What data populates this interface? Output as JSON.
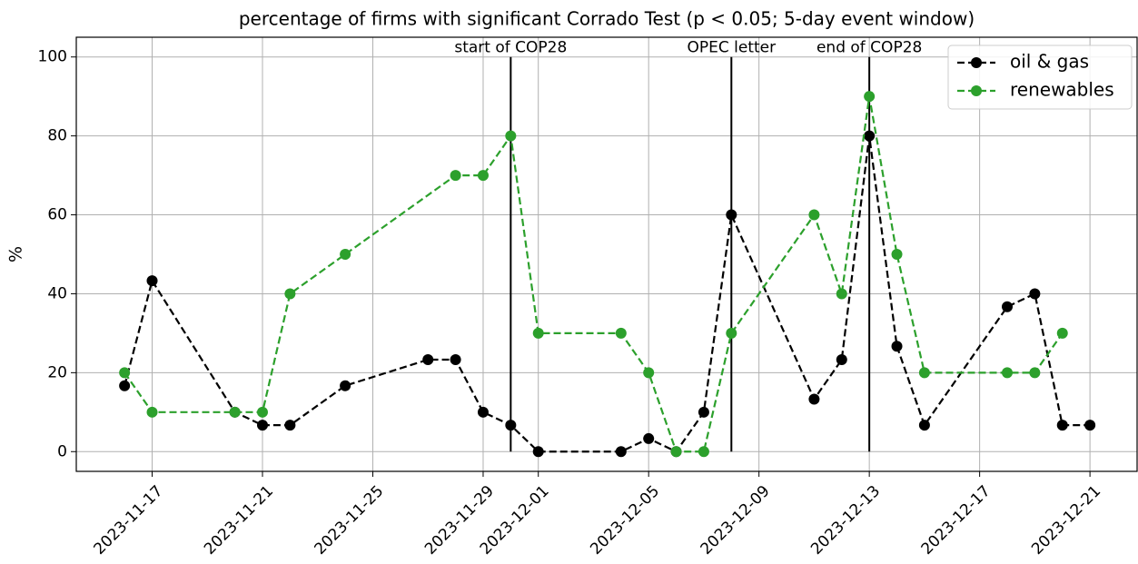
{
  "chart_data": {
    "type": "line",
    "title": "percentage of firms with significant Corrado Test (p < 0.05; 5-day event window)",
    "y_label": "%",
    "xlim": [
      "2023-11-14T06:00",
      "2023-12-22T17:00"
    ],
    "xticks": [
      "2023-11-17",
      "2023-11-21",
      "2023-11-25",
      "2023-11-29",
      "2023-12-01",
      "2023-12-05",
      "2023-12-09",
      "2023-12-13",
      "2023-12-17",
      "2023-12-21"
    ],
    "ylim": [
      -5,
      105
    ],
    "yticks": [
      0,
      20,
      40,
      60,
      80,
      100
    ],
    "grid": true,
    "legend": "upper right",
    "series": [
      {
        "name": "oil & gas",
        "color": "#000000",
        "x": [
          "2023-11-16",
          "2023-11-17",
          "2023-11-20",
          "2023-11-21",
          "2023-11-22",
          "2023-11-24",
          "2023-11-27",
          "2023-11-28",
          "2023-11-29",
          "2023-11-30",
          "2023-12-01",
          "2023-12-04",
          "2023-12-05",
          "2023-12-06",
          "2023-12-07",
          "2023-12-08",
          "2023-12-11",
          "2023-12-12",
          "2023-12-13",
          "2023-12-14",
          "2023-12-15",
          "2023-12-18",
          "2023-12-19",
          "2023-12-20",
          "2023-12-21"
        ],
        "values": [
          16.7,
          43.3,
          10,
          6.7,
          6.7,
          16.7,
          23.3,
          23.3,
          10,
          6.7,
          0,
          0,
          3.3,
          0,
          10,
          60,
          13.3,
          23.3,
          80,
          26.7,
          6.7,
          36.7,
          40,
          6.7,
          6.7
        ]
      },
      {
        "name": "renewables",
        "color": "#2ca02c",
        "x": [
          "2023-11-16",
          "2023-11-17",
          "2023-11-20",
          "2023-11-21",
          "2023-11-22",
          "2023-11-24",
          "2023-11-28",
          "2023-11-29",
          "2023-11-30",
          "2023-12-01",
          "2023-12-04",
          "2023-12-05",
          "2023-12-06",
          "2023-12-07",
          "2023-12-08",
          "2023-12-11",
          "2023-12-12",
          "2023-12-13",
          "2023-12-14",
          "2023-12-15",
          "2023-12-18",
          "2023-12-19",
          "2023-12-20"
        ],
        "values": [
          20,
          10,
          10,
          10,
          40,
          50,
          70,
          70,
          80,
          30,
          30,
          20,
          0,
          0,
          30,
          60,
          40,
          90,
          50,
          20,
          20,
          20,
          30
        ]
      }
    ],
    "events": [
      {
        "x": "2023-11-30",
        "label": "start of COP28"
      },
      {
        "x": "2023-12-08",
        "label": "OPEC letter"
      },
      {
        "x": "2023-12-13",
        "label": "end of COP28"
      }
    ]
  }
}
